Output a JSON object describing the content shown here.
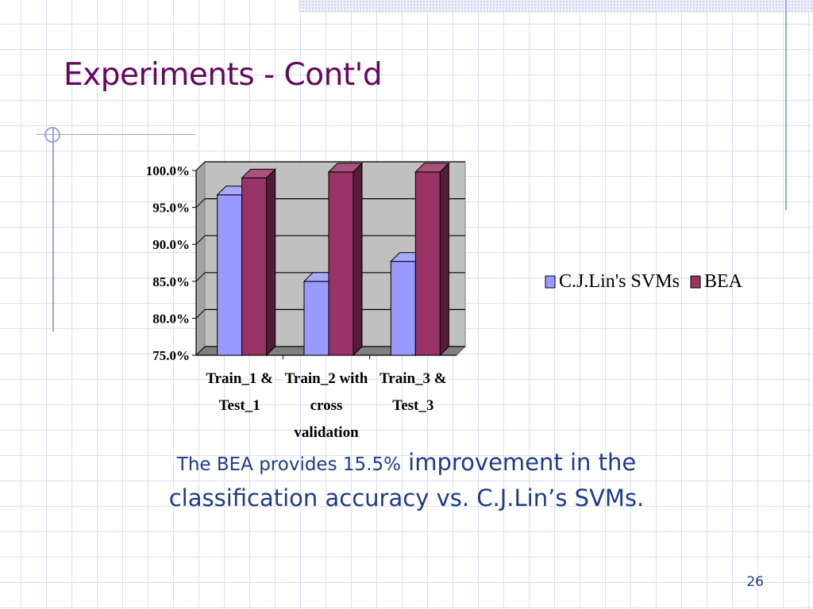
{
  "slide": {
    "title": "Experiments - Cont'd",
    "caption_part1": "The BEA provides 15.5%",
    "caption_part2": " improvement in the",
    "caption_line2": "classification accuracy vs.  C.J.Lin’s SVMs.",
    "page_number": "26"
  },
  "chart_data": {
    "type": "bar",
    "categories": [
      [
        "Train_1 &",
        "Test_1"
      ],
      [
        "Train_2 with",
        "cross",
        "validation"
      ],
      [
        "Train_3 &",
        "Test_3"
      ]
    ],
    "series": [
      {
        "name": "C.J.Lin's SVMs",
        "values": [
          96.7,
          85.0,
          87.7
        ],
        "color": "#9999ff"
      },
      {
        "name": "BEA",
        "values": [
          99.0,
          99.8,
          99.8
        ],
        "color": "#993366"
      }
    ],
    "y_ticks": [
      "100.0%",
      "95.0%",
      "90.0%",
      "85.0%",
      "80.0%",
      "75.0%"
    ],
    "ylim": [
      75,
      100
    ],
    "grid": true,
    "three_d": true,
    "wall_color": "#c0c0c0",
    "legend_position": "right"
  }
}
